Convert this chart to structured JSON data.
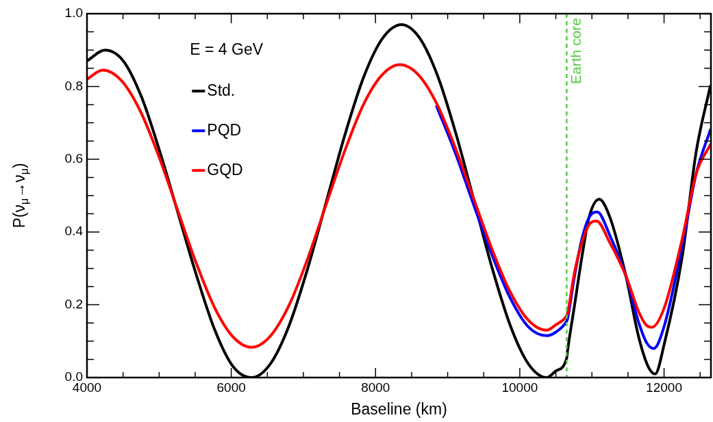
{
  "chart_data": {
    "type": "line",
    "xlabel": "Baseline (km)",
    "ylabel": "P(ν$_{μ}$→ν$_{μ}$)",
    "annotations": [
      "E = 4 GeV"
    ],
    "xlim": [
      4000,
      12650
    ],
    "xticks": [
      4000,
      {
        "value": 4500,
        "label": null
      },
      {
        "value": 5000,
        "label": null
      },
      {
        "value": 5500,
        "label": null
      },
      6000,
      {
        "value": 6500,
        "label": null
      },
      {
        "value": 7000,
        "label": null
      },
      {
        "value": 7500,
        "label": null
      },
      8000,
      {
        "value": 8500,
        "label": null
      },
      {
        "value": 9000,
        "label": null
      },
      {
        "value": 9500,
        "label": null
      },
      10000,
      {
        "value": 10500,
        "label": null
      },
      {
        "value": 11000,
        "label": null
      },
      {
        "value": 11500,
        "label": null
      },
      12000,
      {
        "value": 12500,
        "label": null
      }
    ],
    "ylim": [
      0,
      1
    ],
    "yticks": [
      {
        "value": 0,
        "label": "0.0"
      },
      {
        "value": 0.05,
        "label": null
      },
      {
        "value": 0.1,
        "label": null
      },
      {
        "value": 0.15,
        "label": null
      },
      {
        "value": 0.2,
        "label": "0.2"
      },
      {
        "value": 0.25,
        "label": null
      },
      {
        "value": 0.3,
        "label": null
      },
      {
        "value": 0.35,
        "label": null
      },
      {
        "value": 0.4,
        "label": "0.4"
      },
      {
        "value": 0.45,
        "label": null
      },
      {
        "value": 0.5,
        "label": null
      },
      {
        "value": 0.55,
        "label": null
      },
      {
        "value": 0.6,
        "label": "0.6"
      },
      {
        "value": 0.65,
        "label": null
      },
      {
        "value": 0.7,
        "label": null
      },
      {
        "value": 0.75,
        "label": null
      },
      {
        "value": 0.8,
        "label": "0.8"
      },
      {
        "value": 0.85,
        "label": null
      },
      {
        "value": 0.9,
        "label": null
      },
      {
        "value": 0.95,
        "label": null
      },
      {
        "value": 1,
        "label": "1.0"
      }
    ],
    "grid": false,
    "legend": "top left",
    "marker": "none",
    "line_style": "solid",
    "ref_lines": [
      {
        "axis": "x",
        "value": 10650,
        "label": "Earth core",
        "color": "#55cc44",
        "line_style": "dashed"
      }
    ],
    "series": [
      {
        "name": "Std.",
        "color": "#000000",
        "x": [
          4000,
          4250,
          4504,
          4758,
          5011,
          5265,
          5519,
          5773,
          6026,
          6280,
          6540,
          6800,
          7060,
          7320,
          7580,
          7840,
          8100,
          8360,
          8612,
          8863,
          9115,
          9367,
          9618,
          9870,
          10121,
          10373,
          10500,
          10650,
          10660,
          10760,
          10860,
          10960,
          11101,
          11250,
          11470,
          11650,
          11780,
          11877,
          12000,
          12250,
          12445,
          12640
        ],
        "values": [
          0.87,
          0.9,
          0.87,
          0.77,
          0.62,
          0.45,
          0.28,
          0.13,
          0.03,
          0,
          0.037,
          0.142,
          0.3,
          0.485,
          0.67,
          0.828,
          0.933,
          0.97,
          0.933,
          0.828,
          0.67,
          0.485,
          0.3,
          0.142,
          0.037,
          0,
          0.018,
          0.053,
          0.07,
          0.2,
          0.33,
          0.44,
          0.49,
          0.44,
          0.28,
          0.11,
          0.03,
          0.01,
          0.09,
          0.33,
          0.62,
          0.8
        ]
      },
      {
        "name": "PQD",
        "color": "#0000ff",
        "x": [
          8848,
          9101,
          9355,
          9609,
          9863,
          10116,
          10373,
          10500,
          10650,
          10660,
          10760,
          10860,
          10960,
          11075,
          11250,
          11470,
          11650,
          11760,
          11858,
          12000,
          12250,
          12445,
          12640
        ],
        "values": [
          0.745,
          0.62,
          0.478,
          0.34,
          0.22,
          0.14,
          0.115,
          0.125,
          0.155,
          0.16,
          0.28,
          0.38,
          0.44,
          0.455,
          0.39,
          0.28,
          0.15,
          0.095,
          0.08,
          0.14,
          0.36,
          0.56,
          0.68
        ]
      },
      {
        "name": "GQD",
        "color": "#ff0000",
        "x": [
          4000,
          4220,
          4478,
          4735,
          4993,
          5250,
          5508,
          5765,
          6023,
          6280,
          6538,
          6795,
          7053,
          7310,
          7568,
          7825,
          8083,
          8340,
          8594,
          8848,
          9101,
          9355,
          9609,
          9863,
          10116,
          10370,
          10500,
          10650,
          10660,
          10760,
          10860,
          10960,
          11064,
          11250,
          11470,
          11650,
          11750,
          11830,
          12000,
          12250,
          12445,
          12640
        ],
        "values": [
          0.82,
          0.845,
          0.816,
          0.734,
          0.61,
          0.464,
          0.318,
          0.194,
          0.112,
          0.083,
          0.113,
          0.196,
          0.323,
          0.472,
          0.62,
          0.747,
          0.83,
          0.86,
          0.832,
          0.753,
          0.634,
          0.495,
          0.356,
          0.237,
          0.158,
          0.13,
          0.145,
          0.17,
          0.175,
          0.29,
          0.37,
          0.42,
          0.43,
          0.37,
          0.28,
          0.18,
          0.145,
          0.138,
          0.19,
          0.38,
          0.56,
          0.64
        ]
      }
    ]
  }
}
